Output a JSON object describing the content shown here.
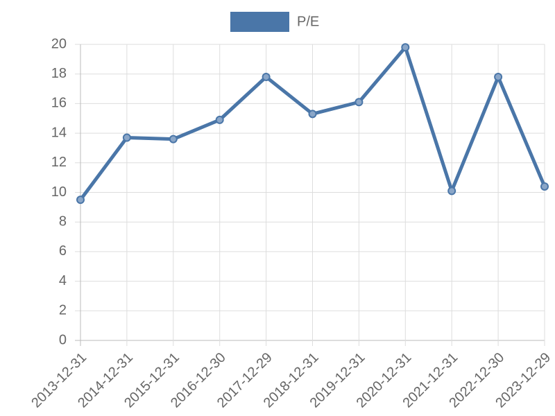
{
  "chart_data": {
    "type": "line",
    "categories": [
      "2013-12-31",
      "2014-12-31",
      "2015-12-31",
      "2016-12-30",
      "2017-12-29",
      "2018-12-31",
      "2019-12-31",
      "2020-12-31",
      "2021-12-31",
      "2022-12-30",
      "2023-12-29"
    ],
    "series": [
      {
        "name": "P/E",
        "color": "#4a76a8",
        "values": [
          9.5,
          13.7,
          13.6,
          14.9,
          17.8,
          15.3,
          16.1,
          19.8,
          10.1,
          17.8,
          10.4
        ]
      }
    ],
    "ylim": [
      0,
      20
    ],
    "yticks": [
      0,
      2,
      4,
      6,
      8,
      10,
      12,
      14,
      16,
      18,
      20
    ],
    "grid": true,
    "legend": "top"
  }
}
